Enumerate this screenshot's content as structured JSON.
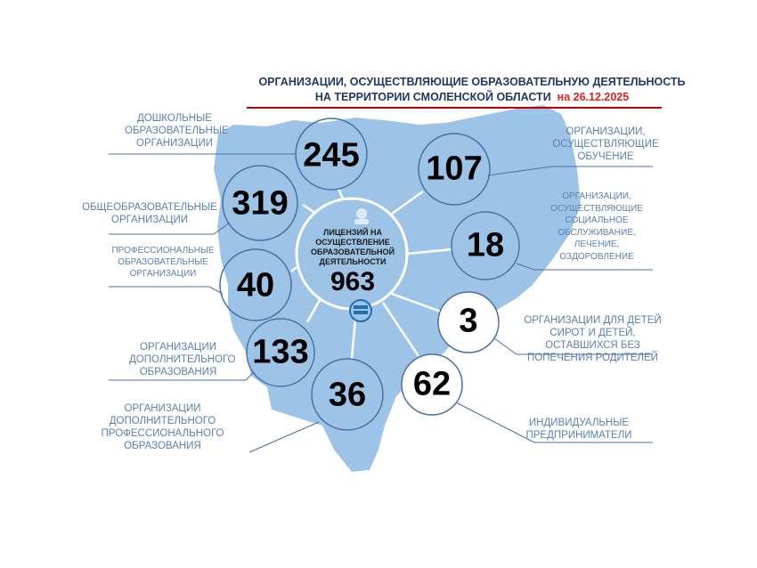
{
  "title": {
    "line1": "ОРГАНИЗАЦИИ, ОСУЩЕСТВЛЯЮЩИЕ ОБРАЗОВАТЕЛЬНУЮ ДЕЯТЕЛЬНОСТЬ",
    "line2": "НА ТЕРРИТОРИИ СМОЛЕНСКОЙ ОБЛАСТИ",
    "date": "на  26.12.2025"
  },
  "colors": {
    "map": "#9dc3e6",
    "circle_stroke": "#4a6fa5",
    "title": "#1f3864",
    "date": "#e02020",
    "rule": "#c00000",
    "label": "#5a7fb0"
  },
  "center": {
    "label": "ЛИЦЕНЗИЙ НА ОСУЩЕСТВЛЕНИЕ ОБРАЗОВАТЕЛЬНОЙ ДЕЯТЕЛЬНОСТИ",
    "value": "963",
    "icons": [
      "crest-icon",
      "books-icon"
    ]
  },
  "categories": [
    {
      "label": "ДОШКОЛЬНЫЕ ОБРАЗОВАТЕЛЬНЫЕ ОРГАНИЗАЦИИ",
      "value": "245"
    },
    {
      "label": "ОБЩЕОБРАЗОВАТЕЛЬНЫЕ ОРГАНИЗАЦИИ",
      "value": "319"
    },
    {
      "label": "ПРОФЕССИОНАЛЬНЫЕ ОБРАЗОВАТЕЛЬНЫЕ ОРГАНИЗАЦИИ",
      "value": "40"
    },
    {
      "label": "ОРГАНИЗАЦИИ ДОПОЛНИТЕЛЬНОГО ОБРАЗОВАНИЯ",
      "value": "133"
    },
    {
      "label": "ОРГАНИЗАЦИИ ДОПОЛНИТЕЛЬНОГО ПРОФЕССИОНАЛЬНОГО ОБРАЗОВАНИЯ",
      "value": "36"
    },
    {
      "label": "ИНДИВИДУАЛЬНЫЕ ПРЕДПРИНИМАТЕЛИ",
      "value": "62"
    },
    {
      "label": "ОРГАНИЗАЦИИ ДЛЯ ДЕТЕЙ СИРОТ И ДЕТЕЙ, ОСТАВШИХСЯ БЕЗ ПОПЕЧЕНИЯ РОДИТЕЛЕЙ",
      "value": "3"
    },
    {
      "label": "ОРГАНИЗАЦИИ, ОСУЩЕСТВЛЯЮЩИЕ СОЦИАЛЬНОЕ ОБСЛУЖИВАНИЕ, ЛЕЧЕНИЕ, ОЗДОРОВЛЕНИЕ",
      "value": "18"
    },
    {
      "label": "ОРГАНИЗАЦИИ, ОСУЩЕСТВЛЯЮЩИЕ ОБУЧЕНИЕ",
      "value": "107"
    }
  ]
}
